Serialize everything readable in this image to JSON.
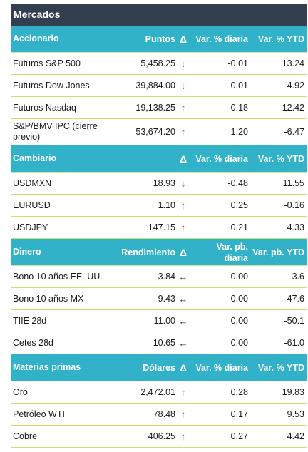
{
  "title": "Mercados",
  "sections": [
    {
      "headers": [
        "Accionario",
        "Puntos",
        "Δ",
        "Var. % diaria",
        "Var. % YTD"
      ],
      "rows": [
        {
          "name": "Futuros S&P 500",
          "value": "5,458.25",
          "dir": "down",
          "color": "#e0201c",
          "var": "-0.01",
          "ytd": "13.24"
        },
        {
          "name": "Futuros Dow Jones",
          "value": "39,884.00",
          "dir": "down",
          "color": "#e0201c",
          "var": "-0.01",
          "ytd": "4.92"
        },
        {
          "name": "Futuros Nasdaq",
          "value": "19,138.25",
          "dir": "up",
          "color": "#2b8a2b",
          "var": "0.18",
          "ytd": "12.42"
        },
        {
          "name": "S&P/BMV IPC (cierre previo)",
          "value": "53,674.20",
          "dir": "up",
          "color": "#2b8a2b",
          "var": "1.20",
          "ytd": "-6.47"
        }
      ]
    },
    {
      "headers": [
        "Cambiario",
        "",
        "Δ",
        "Var. % diaria",
        "Var. % YTD"
      ],
      "rows": [
        {
          "name": "USDMXN",
          "value": "18.93",
          "dir": "down",
          "color": "#2b8a2b",
          "var": "-0.48",
          "ytd": "11.55"
        },
        {
          "name": "EURUSD",
          "value": "1.10",
          "dir": "up",
          "color": "#2b8a2b",
          "var": "0.25",
          "ytd": "-0.16"
        },
        {
          "name": "USDJPY",
          "value": "147.15",
          "dir": "up",
          "color": "#e0201c",
          "var": "0.21",
          "ytd": "4.33"
        }
      ]
    },
    {
      "headers": [
        "Dinero",
        "Rendimiento",
        "Δ",
        "Var. pb. diaria",
        "Var. pb. YTD"
      ],
      "rows": [
        {
          "name": "Bono 10 años EE. UU.",
          "value": "3.84",
          "dir": "flat",
          "color": "#333333",
          "var": "0.00",
          "ytd": "-3.6"
        },
        {
          "name": "Bono 10 años MX",
          "value": "9.43",
          "dir": "flat",
          "color": "#333333",
          "var": "0.00",
          "ytd": "47.6"
        },
        {
          "name": "TIIE 28d",
          "value": "11.00",
          "dir": "flat",
          "color": "#333333",
          "var": "0.00",
          "ytd": "-50.1"
        },
        {
          "name": "Cetes 28d",
          "value": "10.65",
          "dir": "flat",
          "color": "#333333",
          "var": "0.00",
          "ytd": "-61.0"
        }
      ]
    },
    {
      "headers": [
        "Materias primas",
        "Dólares",
        "Δ",
        "Var. % diaria",
        "Var. % YTD"
      ],
      "rows": [
        {
          "name": "Oro",
          "value": "2,472.01",
          "dir": "up",
          "color": "#2b8a2b",
          "var": "0.28",
          "ytd": "19.83"
        },
        {
          "name": "Petróleo WTI",
          "value": "78.48",
          "dir": "up",
          "color": "#2b8a2b",
          "var": "0.17",
          "ytd": "9.53"
        },
        {
          "name": "Cobre",
          "value": "406.25",
          "dir": "up",
          "color": "#2b8a2b",
          "var": "0.27",
          "ytd": "4.42"
        }
      ]
    }
  ],
  "colors": {
    "header": "#31b2c9",
    "title": "#333f4f",
    "rule": "#c9e26b"
  }
}
